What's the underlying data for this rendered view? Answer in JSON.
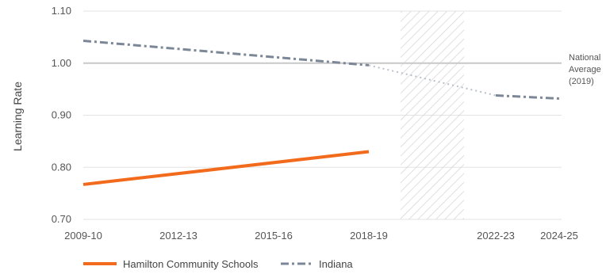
{
  "chart_data": {
    "type": "line",
    "ylabel": "Learning Rate",
    "ylim": [
      0.7,
      1.1
    ],
    "yticks": [
      "0.70",
      "0.80",
      "0.90",
      "1.00",
      "1.10"
    ],
    "xticks": [
      "2009-10",
      "2012-13",
      "2015-16",
      "2018-19",
      "2022-23",
      "2024-25"
    ],
    "grid": true,
    "legend_position": "bottom-left",
    "reference_line": {
      "value": 1.0,
      "label_lines": [
        "National",
        "Average",
        "(2019)"
      ]
    },
    "shaded_region": {
      "from": "2019-20",
      "to": "2021-22",
      "pattern": "diagonal-hatch"
    },
    "series": [
      {
        "name": "Hamilton Community Schools",
        "color": "#f26b1d",
        "style": "solid",
        "points": [
          {
            "x": "2009-10",
            "y": 0.767
          },
          {
            "x": "2018-19",
            "y": 0.83
          }
        ]
      },
      {
        "name": "Indiana",
        "color": "#7b8797",
        "style": "dashed",
        "points": [
          {
            "x": "2009-10",
            "y": 1.043
          },
          {
            "x": "2018-19",
            "y": 0.996
          },
          {
            "x": "2022-23",
            "y": 0.938
          },
          {
            "x": "2024-25",
            "y": 0.932
          }
        ],
        "dotted_segment": {
          "from": "2018-19",
          "to": "2022-23"
        }
      }
    ]
  }
}
